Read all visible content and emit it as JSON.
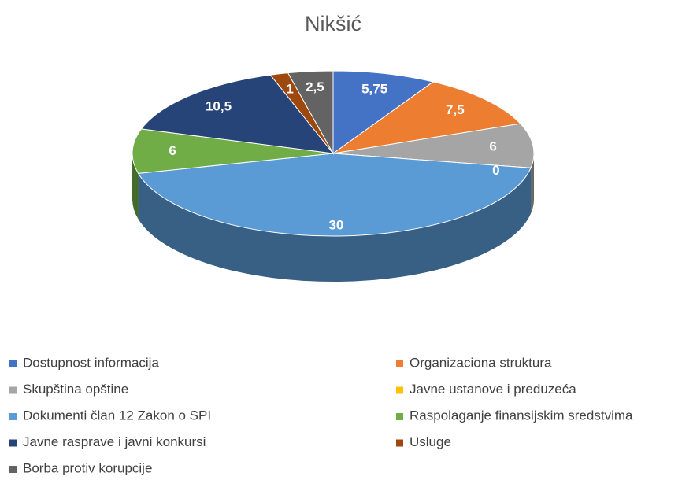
{
  "chart_data": {
    "type": "pie3d",
    "title": "Nikšić",
    "categories": [
      "Dostupnost informacija",
      "Organizaciona struktura",
      "Skupština opštine",
      "Javne ustanove i  preduzeća",
      "Dokumenti član 12 Zakon o SPI",
      "Raspolaganje finansijskim sredstvima",
      "Javne rasprave i javni konkursi",
      "Usluge",
      "Borba protiv korupcije"
    ],
    "values": [
      5.75,
      7.5,
      6,
      0,
      30,
      6,
      10.5,
      1,
      2.5
    ],
    "value_labels": [
      "5,75",
      "7,5",
      "6",
      "0",
      "30",
      "6",
      "10,5",
      "1",
      "2,5"
    ],
    "colors": [
      "#4472c4",
      "#ed7d31",
      "#a5a5a5",
      "#ffc000",
      "#5b9bd5",
      "#70ad47",
      "#264478",
      "#9e480e",
      "#636363"
    ]
  }
}
